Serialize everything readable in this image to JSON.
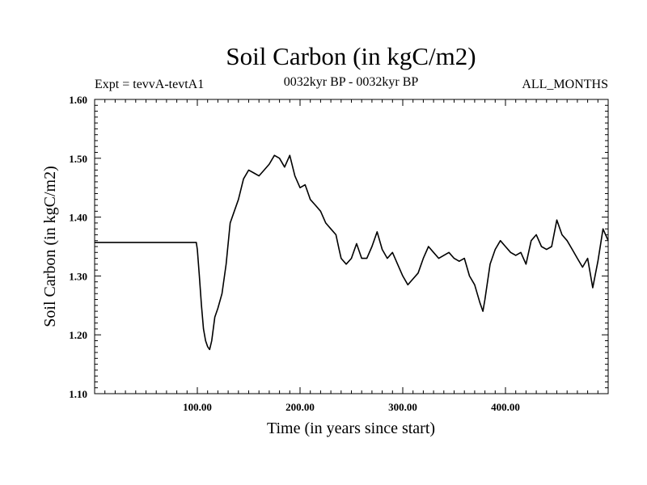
{
  "chart_data": {
    "type": "line",
    "title": "Soil Carbon (in kgC/m2)",
    "subtitle_left": "Expt = tevvA-tevtA1",
    "subtitle_center": "0032kyr BP - 0032kyr BP",
    "subtitle_right": "ALL_MONTHS",
    "xlabel": "Time (in years since start)",
    "ylabel": "Soil Carbon (in kgC/m2)",
    "xlim": [
      0,
      500
    ],
    "ylim": [
      1.1,
      1.6
    ],
    "xticks": [
      100,
      200,
      300,
      400
    ],
    "xtick_labels": [
      "100.00",
      "200.00",
      "300.00",
      "400.00"
    ],
    "yticks": [
      1.1,
      1.2,
      1.3,
      1.4,
      1.5,
      1.6
    ],
    "ytick_labels": [
      "1.10",
      "1.20",
      "1.30",
      "1.40",
      "1.50",
      "1.60"
    ],
    "grid": false,
    "line_color": "#000000",
    "series": [
      {
        "x": [
          0,
          99,
          100,
          102,
          104,
          106,
          108,
          110,
          112,
          114,
          117,
          120,
          124,
          128,
          132,
          136,
          140,
          145,
          150,
          155,
          160,
          165,
          170,
          175,
          180,
          185,
          190,
          195,
          200,
          205,
          210,
          215,
          220,
          225,
          230,
          235,
          238,
          240,
          245,
          250,
          255,
          260,
          265,
          270,
          275,
          280,
          285,
          290,
          295,
          300,
          305,
          310,
          315,
          320,
          325,
          330,
          335,
          340,
          345,
          350,
          355,
          360,
          365,
          370,
          375,
          378,
          380,
          385,
          390,
          395,
          400,
          405,
          410,
          415,
          420,
          425,
          430,
          435,
          440,
          445,
          450,
          455,
          460,
          465,
          470,
          475,
          480,
          485,
          490,
          495,
          500
        ],
        "values": [
          1.357,
          1.357,
          1.345,
          1.3,
          1.25,
          1.21,
          1.19,
          1.18,
          1.175,
          1.19,
          1.23,
          1.245,
          1.27,
          1.32,
          1.39,
          1.41,
          1.43,
          1.465,
          1.48,
          1.475,
          1.47,
          1.48,
          1.49,
          1.505,
          1.5,
          1.485,
          1.505,
          1.47,
          1.45,
          1.455,
          1.43,
          1.42,
          1.41,
          1.39,
          1.38,
          1.37,
          1.345,
          1.33,
          1.32,
          1.33,
          1.355,
          1.33,
          1.33,
          1.35,
          1.375,
          1.345,
          1.33,
          1.34,
          1.32,
          1.3,
          1.285,
          1.295,
          1.305,
          1.33,
          1.35,
          1.34,
          1.33,
          1.335,
          1.34,
          1.33,
          1.325,
          1.33,
          1.3,
          1.285,
          1.255,
          1.24,
          1.26,
          1.32,
          1.345,
          1.36,
          1.35,
          1.34,
          1.335,
          1.34,
          1.32,
          1.36,
          1.37,
          1.35,
          1.345,
          1.35,
          1.395,
          1.37,
          1.36,
          1.345,
          1.33,
          1.315,
          1.33,
          1.28,
          1.325,
          1.38,
          1.36
        ]
      }
    ]
  }
}
